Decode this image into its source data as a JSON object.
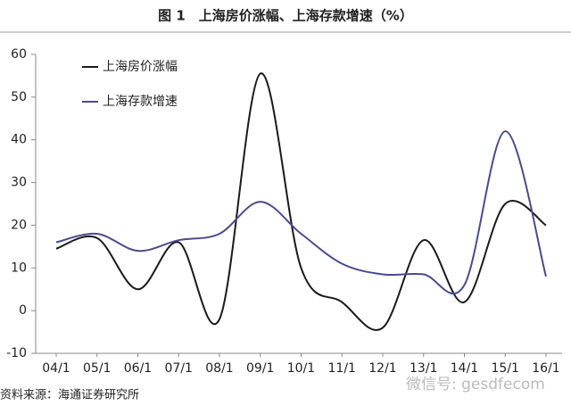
{
  "chart_data": {
    "type": "line",
    "title": "图 1　上海房价涨幅、上海存款增速（%）",
    "source": "资料来源：海通证券研究所",
    "watermark": "微信号: gesdfecom",
    "categories": [
      "04/1",
      "05/1",
      "06/1",
      "07/1",
      "08/1",
      "09/1",
      "10/1",
      "11/1",
      "12/1",
      "13/1",
      "14/1",
      "15/1",
      "16/1"
    ],
    "series": [
      {
        "name": "上海房价涨幅",
        "color": "#1a1a1a",
        "values": [
          14.5,
          17,
          5,
          16,
          -2,
          55.5,
          10,
          2,
          -4,
          16.5,
          2,
          25,
          20
        ]
      },
      {
        "name": "上海存款增速",
        "color": "#4b4a8c",
        "values": [
          16,
          18,
          14,
          16.5,
          18,
          25.5,
          18,
          11,
          8.5,
          8.5,
          6,
          42,
          8
        ]
      }
    ],
    "ylim": [
      -10,
      60
    ],
    "yticks": [
      -10,
      0,
      10,
      20,
      30,
      40,
      50,
      60
    ],
    "legend": "top-left",
    "grid": false
  }
}
